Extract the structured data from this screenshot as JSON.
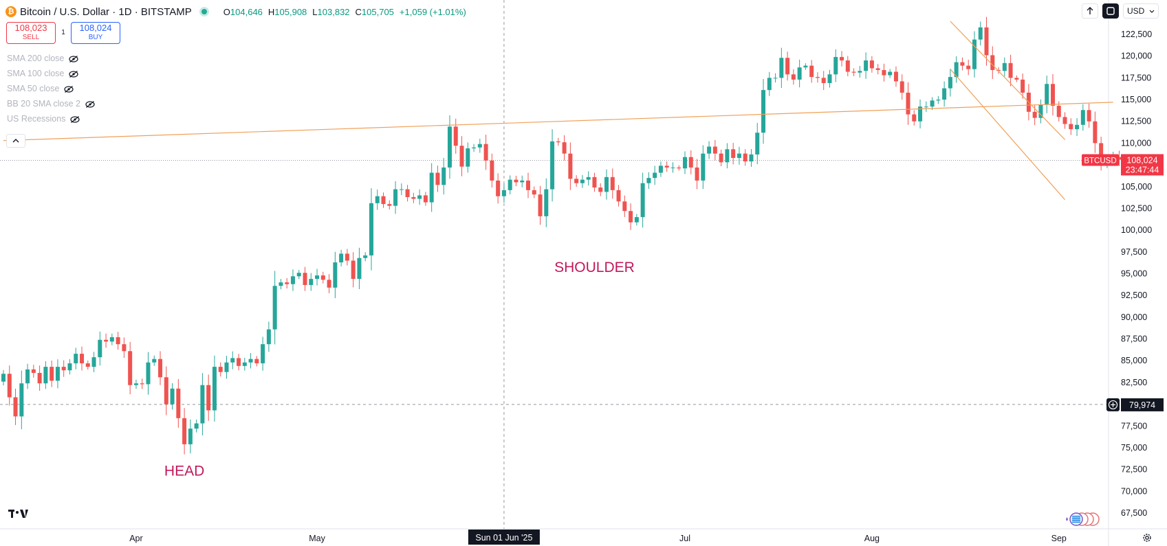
{
  "header": {
    "coin_symbol": "₿",
    "title": "Bitcoin / U.S. Dollar · 1D · BITSTAMP",
    "ohlc": {
      "o_label": "O",
      "o": "104,646",
      "h_label": "H",
      "h": "105,908",
      "l_label": "L",
      "l": "103,832",
      "c_label": "C",
      "c": "105,705"
    },
    "change": "+1,059 (+1.01%)"
  },
  "trade": {
    "sell_price": "108,023",
    "sell_label": "SELL",
    "spread": "1",
    "buy_price": "108,024",
    "buy_label": "BUY"
  },
  "indicators": [
    {
      "label": "SMA 200 close"
    },
    {
      "label": "SMA 100 close"
    },
    {
      "label": "SMA 50 close"
    },
    {
      "label": "BB 20 SMA close 2"
    },
    {
      "label": "US Recessions"
    }
  ],
  "controls": {
    "currency": "USD"
  },
  "colors": {
    "up": "#26a69a",
    "down": "#ef5350",
    "trend": "#f0a058",
    "annotation": "#c2185b",
    "price_tag": "#f23645"
  },
  "chart_data": {
    "type": "candlestick",
    "symbol": "BTCUSD",
    "ylim": [
      66000,
      124500
    ],
    "y_ticks": [
      67500,
      70000,
      72500,
      75000,
      77500,
      80000,
      82500,
      85000,
      87500,
      90000,
      92500,
      95000,
      97500,
      100000,
      102500,
      105000,
      107500,
      110000,
      112500,
      115000,
      117500,
      120000,
      122500
    ],
    "y_tick_labels": [
      "67,500",
      "70,000",
      "72,500",
      "75,000",
      "77,500",
      "80,000",
      "82,500",
      "85,000",
      "87,500",
      "90,000",
      "92,500",
      "95,000",
      "97,500",
      "100,000",
      "102,500",
      "105,000",
      "107,500",
      "110,000",
      "112,500",
      "115,000",
      "117,500",
      "120,000",
      "122,500"
    ],
    "x_tick_labels": [
      {
        "label": "Apr",
        "date": "2025-04-01"
      },
      {
        "label": "May",
        "date": "2025-05-01"
      },
      {
        "label": "Jul",
        "date": "2025-07-01"
      },
      {
        "label": "Aug",
        "date": "2025-08-01"
      },
      {
        "label": "Sep",
        "date": "2025-09-01"
      }
    ],
    "first_date": "2025-03-10",
    "closes": [
      83500,
      80800,
      78600,
      82400,
      84000,
      83600,
      82400,
      84300,
      82700,
      84300,
      83900,
      84700,
      85800,
      84700,
      84300,
      85400,
      87400,
      87200,
      87700,
      86900,
      86100,
      82200,
      82400,
      82300,
      84800,
      85200,
      83100,
      80000,
      81800,
      78400,
      75400,
      77200,
      77800,
      82200,
      79300,
      84300,
      83700,
      84800,
      85300,
      84400,
      84800,
      85200,
      84700,
      86900,
      88600,
      93600,
      94000,
      93800,
      94700,
      95100,
      93700,
      94400,
      94800,
      94300,
      93400,
      96300,
      97300,
      96500,
      94400,
      96800,
      97100,
      103100,
      103900,
      103000,
      102800,
      104700,
      104700,
      103800,
      103600,
      104000,
      103200,
      106600,
      105200,
      107200,
      111900,
      109700,
      107300,
      109400,
      109500,
      109900,
      108000,
      105700,
      103900,
      104600,
      105800,
      105500,
      105700,
      104600,
      104100,
      101600,
      104700,
      110200,
      110100,
      108800,
      105900,
      105400,
      105800,
      106100,
      104900,
      104400,
      106100,
      104600,
      103300,
      102200,
      100900,
      101500,
      105400,
      106000,
      106600,
      107400,
      107200,
      107200,
      107100,
      108400,
      107200,
      105700,
      108800,
      109600,
      108800,
      107800,
      109300,
      108300,
      108800,
      107900,
      108700,
      111200,
      116100,
      117500,
      117500,
      119800,
      117900,
      117300,
      118700,
      118900,
      117600,
      117500,
      116900,
      117900,
      119900,
      119500,
      118200,
      118100,
      118300,
      119500,
      118600,
      118400,
      117800,
      118200,
      117100,
      115800,
      113300,
      112500,
      114200,
      114200,
      114900,
      115000,
      116300,
      117600,
      119300,
      118900,
      118500,
      121900,
      123300,
      120100,
      118400,
      118300,
      119200,
      117500,
      117300,
      115800,
      113600,
      112900,
      114400,
      116800,
      114300,
      113000,
      112200,
      111600,
      112100,
      113800,
      112500,
      110000,
      107600,
      108000,
      108400,
      108100,
      108300
    ],
    "last_point": {
      "time": "2025-09-01",
      "close": 108024
    },
    "price_line": {
      "label": "BTCUSD",
      "price": "108,024",
      "countdown": "23:47:44"
    },
    "crosshair": {
      "price": "79,974",
      "date_label": "Sun 01 Jun '25"
    },
    "annotations": [
      {
        "text": "HEAD",
        "x": "2025-04-09",
        "y": 71800
      },
      {
        "text": "SHOULDER",
        "x": "2025-06-16",
        "y": 95200
      }
    ],
    "trendlines": [
      {
        "name": "neckline",
        "points": [
          [
            "2025-03-10",
            110300
          ],
          [
            "2025-09-10",
            114700
          ]
        ]
      },
      {
        "name": "channel-upper",
        "points": [
          [
            "2025-08-14",
            124000
          ],
          [
            "2025-09-02",
            110400
          ]
        ]
      },
      {
        "name": "channel-lower",
        "points": [
          [
            "2025-08-14",
            118500
          ],
          [
            "2025-09-02",
            103500
          ]
        ]
      }
    ],
    "grid": false
  }
}
